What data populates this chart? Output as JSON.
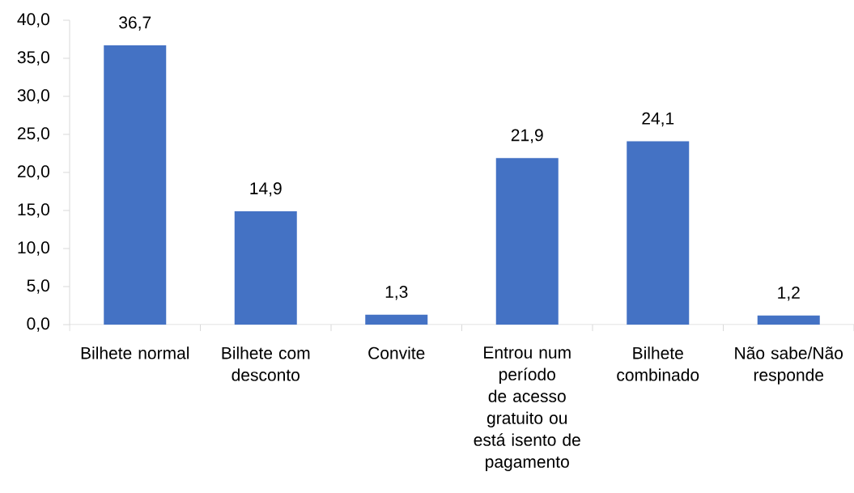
{
  "chart_data": {
    "type": "bar",
    "categories": [
      "Bilhete normal",
      "Bilhete com desconto",
      "Convite",
      "Entrou num período de acesso gratuito ou está isento de pagamento",
      "Bilhete combinado",
      "Não sabe/Não responde"
    ],
    "values": [
      36.7,
      14.9,
      1.3,
      21.9,
      24.1,
      1.2
    ],
    "value_labels": [
      "36,7",
      "14,9",
      "1,3",
      "21,9",
      "24,1",
      "1,2"
    ],
    "color": "#4472c4",
    "ylim": [
      0,
      40
    ],
    "yticks": [
      {
        "value": 0,
        "label": "0,0"
      },
      {
        "value": 5,
        "label": "5,0"
      },
      {
        "value": 10,
        "label": "10,0"
      },
      {
        "value": 15,
        "label": "15,0"
      },
      {
        "value": 20,
        "label": "20,0"
      },
      {
        "value": 25,
        "label": "25,0"
      },
      {
        "value": 30,
        "label": "30,0"
      },
      {
        "value": 35,
        "label": "35,0"
      },
      {
        "value": 40,
        "label": "40,0"
      }
    ]
  }
}
